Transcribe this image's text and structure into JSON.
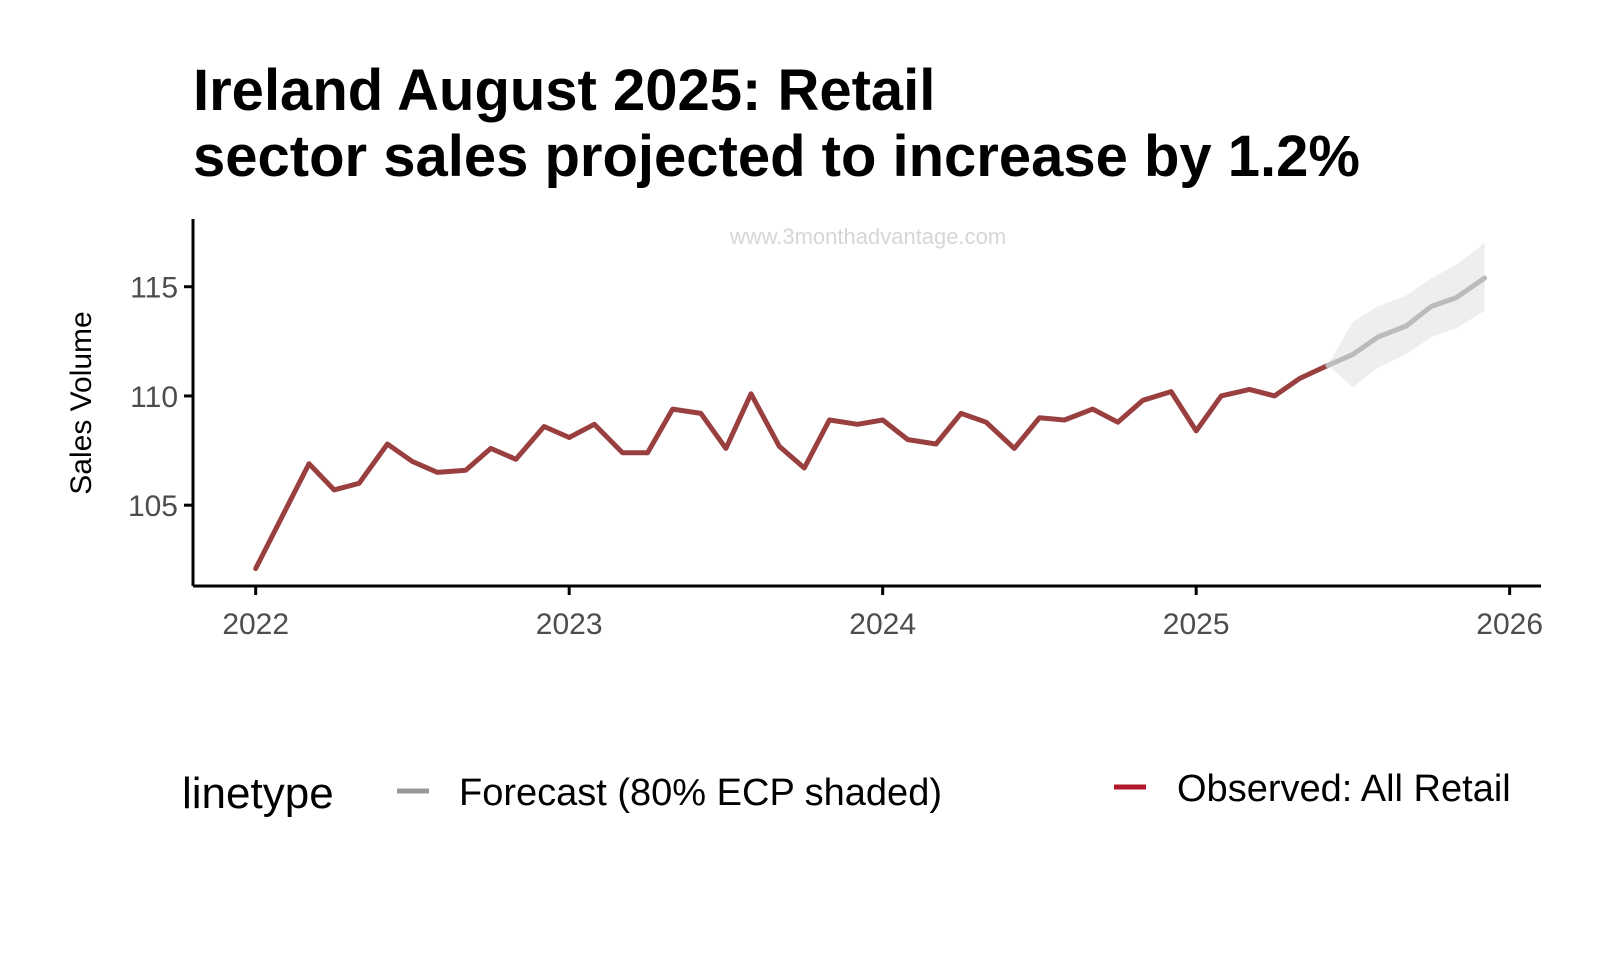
{
  "chart_data": {
    "type": "line",
    "title_lines": [
      "Ireland August 2025: Retail",
      "sector sales projected to increase by 1.2%"
    ],
    "xlabel": "",
    "ylabel": "Sales Volume",
    "watermark": "www.3monthadvantage.com",
    "xlim": [
      2021.8,
      2026.1
    ],
    "ylim": [
      101.3,
      118.1
    ],
    "x_ticks": [
      2022,
      2023,
      2024,
      2025,
      2026
    ],
    "x_tick_labels": [
      "2022",
      "2023",
      "2024",
      "2025",
      "2026"
    ],
    "y_ticks": [
      105,
      110,
      115
    ],
    "y_tick_labels": [
      "105",
      "110",
      "115"
    ],
    "grid": false,
    "legend": {
      "title": "linetype",
      "placement": "bottom",
      "entries": [
        {
          "label": "Forecast (80% ECP shaded)",
          "color": "#999999"
        },
        {
          "label": "Observed: All Retail",
          "color": "#b2182b"
        }
      ]
    },
    "series": [
      {
        "name": "Observed: All Retail",
        "color": "#9a3f3f",
        "x": [
          2022.0,
          2022.17,
          2022.25,
          2022.33,
          2022.42,
          2022.5,
          2022.58,
          2022.67,
          2022.75,
          2022.83,
          2022.92,
          2023.0,
          2023.08,
          2023.17,
          2023.25,
          2023.33,
          2023.42,
          2023.5,
          2023.58,
          2023.67,
          2023.75,
          2023.83,
          2023.92,
          2024.0,
          2024.08,
          2024.17,
          2024.25,
          2024.33,
          2024.42,
          2024.5,
          2024.58,
          2024.67,
          2024.75,
          2024.83,
          2024.92,
          2025.0,
          2025.08,
          2025.17,
          2025.25,
          2025.33,
          2025.42
        ],
        "y": [
          102.1,
          106.9,
          105.7,
          106.0,
          107.8,
          107.0,
          106.5,
          106.6,
          107.6,
          107.1,
          108.6,
          108.1,
          108.7,
          107.4,
          107.4,
          109.4,
          109.2,
          107.6,
          110.1,
          107.7,
          106.7,
          108.9,
          108.7,
          108.9,
          108.0,
          107.8,
          109.2,
          108.8,
          107.6,
          109.0,
          108.9,
          109.4,
          108.8,
          109.8,
          110.2,
          108.4,
          110.0,
          110.3,
          110.0,
          110.8,
          111.4
        ]
      },
      {
        "name": "Forecast (80% ECP shaded)",
        "color": "#bbbbbb",
        "x": [
          2025.42,
          2025.5,
          2025.58,
          2025.67,
          2025.75,
          2025.83,
          2025.92
        ],
        "y": [
          111.4,
          111.9,
          112.7,
          113.2,
          114.1,
          114.5,
          115.4
        ],
        "lower": [
          111.4,
          110.4,
          111.3,
          111.9,
          112.7,
          113.1,
          113.9
        ],
        "upper": [
          111.4,
          113.4,
          114.1,
          114.6,
          115.4,
          116.0,
          117.0
        ]
      }
    ]
  }
}
